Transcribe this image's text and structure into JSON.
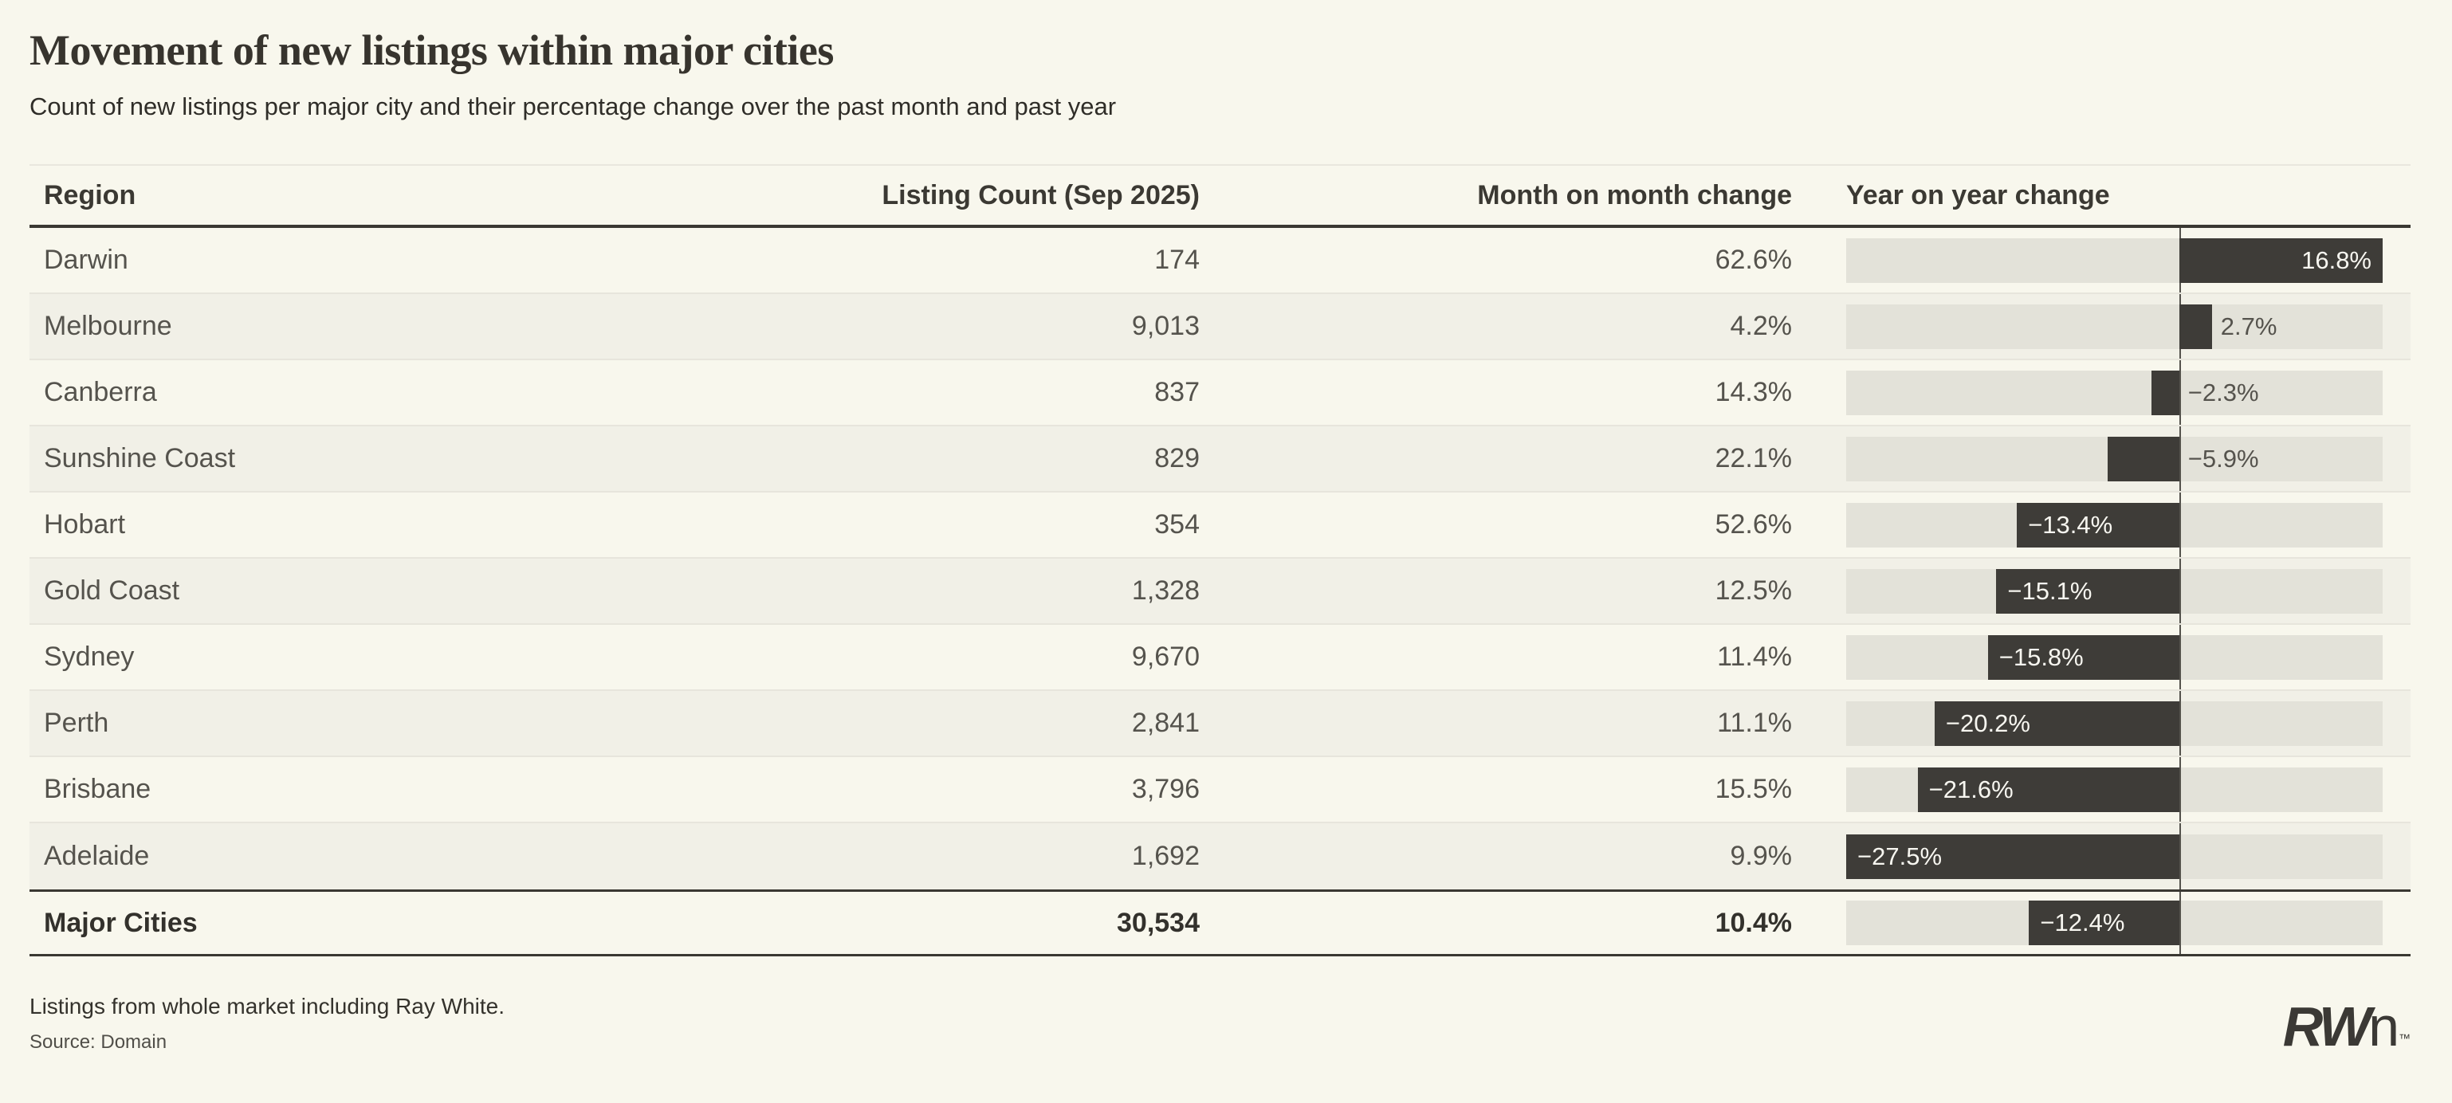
{
  "header": {
    "title": "Movement of new listings within major cities",
    "subtitle": "Count of new listings per major city and their percentage change over the past month and past year"
  },
  "table": {
    "columns": [
      "Region",
      "Listing Count (Sep 2025)",
      "Month on month change",
      "Year on year change"
    ],
    "rows": [
      {
        "region": "Darwin",
        "listing_count": "174",
        "mom_change": "62.6%",
        "yoy_change_value": 16.8,
        "yoy_change_label": "16.8%"
      },
      {
        "region": "Melbourne",
        "listing_count": "9,013",
        "mom_change": "4.2%",
        "yoy_change_value": 2.7,
        "yoy_change_label": "2.7%"
      },
      {
        "region": "Canberra",
        "listing_count": "837",
        "mom_change": "14.3%",
        "yoy_change_value": -2.3,
        "yoy_change_label": "−2.3%"
      },
      {
        "region": "Sunshine Coast",
        "listing_count": "829",
        "mom_change": "22.1%",
        "yoy_change_value": -5.9,
        "yoy_change_label": "−5.9%"
      },
      {
        "region": "Hobart",
        "listing_count": "354",
        "mom_change": "52.6%",
        "yoy_change_value": -13.4,
        "yoy_change_label": "−13.4%"
      },
      {
        "region": "Gold Coast",
        "listing_count": "1,328",
        "mom_change": "12.5%",
        "yoy_change_value": -15.1,
        "yoy_change_label": "−15.1%"
      },
      {
        "region": "Sydney",
        "listing_count": "9,670",
        "mom_change": "11.4%",
        "yoy_change_value": -15.8,
        "yoy_change_label": "−15.8%"
      },
      {
        "region": "Perth",
        "listing_count": "2,841",
        "mom_change": "11.1%",
        "yoy_change_value": -20.2,
        "yoy_change_label": "−20.2%"
      },
      {
        "region": "Brisbane",
        "listing_count": "3,796",
        "mom_change": "15.5%",
        "yoy_change_value": -21.6,
        "yoy_change_label": "−21.6%"
      },
      {
        "region": "Adelaide",
        "listing_count": "1,692",
        "mom_change": "9.9%",
        "yoy_change_value": -27.5,
        "yoy_change_label": "−27.5%"
      }
    ],
    "total_row": {
      "region": "Major Cities",
      "listing_count": "30,534",
      "mom_change": "10.4%",
      "yoy_change_value": -12.4,
      "yoy_change_label": "−12.4%"
    }
  },
  "chart_data": {
    "type": "bar",
    "orientation": "horizontal",
    "title": "Year on year change",
    "categories": [
      "Darwin",
      "Melbourne",
      "Canberra",
      "Sunshine Coast",
      "Hobart",
      "Gold Coast",
      "Sydney",
      "Perth",
      "Brisbane",
      "Adelaide",
      "Major Cities"
    ],
    "series": [
      {
        "name": "Listing Count (Sep 2025)",
        "values": [
          174,
          9013,
          837,
          829,
          354,
          1328,
          9670,
          2841,
          3796,
          1692,
          30534
        ]
      },
      {
        "name": "Month on month change (%)",
        "values": [
          62.6,
          4.2,
          14.3,
          22.1,
          52.6,
          12.5,
          11.4,
          11.1,
          15.5,
          9.9,
          10.4
        ]
      },
      {
        "name": "Year on year change (%)",
        "values": [
          16.8,
          2.7,
          -2.3,
          -5.9,
          -13.4,
          -15.1,
          -15.8,
          -20.2,
          -21.6,
          -27.5,
          -12.4
        ]
      }
    ],
    "xlim": [
      -27.5,
      16.8
    ],
    "grid": false,
    "legend": false,
    "bar_color": "#3e3c38",
    "track_color": "#e3e2d9"
  },
  "footer": {
    "note": "Listings from whole market including Ray White.",
    "source": "Source: Domain"
  },
  "logo": {
    "bold": "RW",
    "light": "n",
    "tm": "™"
  },
  "colors": {
    "background": "#f8f7ed",
    "row_alt": "#f1f0e7",
    "bar_dark": "#3e3c38",
    "bar_track": "#e3e2d9",
    "rule_dark": "#3a3832",
    "divider": "#e7e5dc",
    "text_primary": "#55534d",
    "text_heading": "#37342e",
    "bar_label_inside": "#f7f6f0"
  }
}
